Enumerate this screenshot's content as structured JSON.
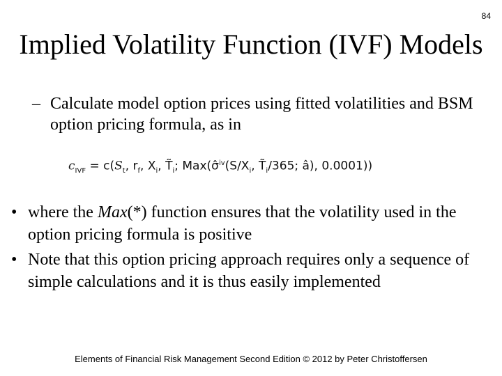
{
  "slide_number": "84",
  "title": "Implied Volatility Function (IVF) Models",
  "sub_bullet": {
    "marker": "–",
    "text": "Calculate model option prices using fitted volatilities and BSM option pricing formula, as in"
  },
  "formula": {
    "lhs": "c",
    "lhs_sub": "IVF",
    "eq": " = c(",
    "args": "S",
    "args_sub_t": "t",
    "r": ", r",
    "r_sub": "f",
    "x": ", X",
    "x_sub": "i",
    "t": ", T̃",
    "t_sub": "i",
    "max": "; Max(σ̂",
    "max_sup": "iv",
    "inner": "(S/X",
    "inner_sub": "i",
    "tail": ", T̃",
    "tail_sub": "i",
    "end": "/365; â), 0.0001))"
  },
  "bullets": [
    {
      "marker": "•",
      "pre": "where the ",
      "italic": "Max",
      "post": "(*) function ensures that the volatility used in the option pricing formula is positive"
    },
    {
      "marker": "•",
      "text": "Note that this option pricing approach requires only a sequence of simple calculations and it is thus easily implemented"
    }
  ],
  "footer": "Elements of Financial Risk Management Second Edition © 2012  by Peter Christoffersen"
}
